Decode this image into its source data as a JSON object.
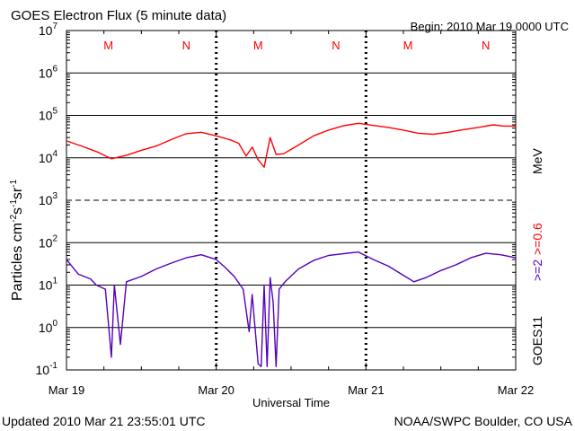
{
  "header": {
    "title": "GOES Electron Flux (5 minute data)",
    "begin": "Begin: 2010 Mar 19 0000 UTC"
  },
  "footer": {
    "updated": "Updated 2010 Mar 21 23:55:01 UTC",
    "source": "NOAA/SWPC Boulder, CO USA"
  },
  "axes": {
    "xlabel": "Universal Time",
    "ylabel": "Particles cm⁻²s⁻¹sr⁻¹",
    "ylabel_parts": {
      "main": "Particles cm",
      "e1": "-2",
      "s": "s",
      "e2": "-1",
      "sr": "sr",
      "e3": "-1"
    },
    "right_label_red": ">=0.6 MeV",
    "right_label_red_parts": {
      "energy": ">=0.6",
      "unit": "MeV"
    },
    "right_label_purple": ">=2",
    "right_label_black": "GOES11",
    "y_tick_labels": [
      {
        "base": "10",
        "exp": "7"
      },
      {
        "base": "10",
        "exp": "6"
      },
      {
        "base": "10",
        "exp": "5"
      },
      {
        "base": "10",
        "exp": "4"
      },
      {
        "base": "10",
        "exp": "3"
      },
      {
        "base": "10",
        "exp": "2"
      },
      {
        "base": "10",
        "exp": "1"
      },
      {
        "base": "10",
        "exp": "0"
      },
      {
        "base": "10",
        "exp": "-1"
      }
    ],
    "x_tick_labels": [
      "Mar 19",
      "Mar 20",
      "Mar 21",
      "Mar 22"
    ]
  },
  "chart_data": {
    "type": "line",
    "x_unit": "days since 2010 Mar 19 00:00 UTC",
    "xlim": [
      0,
      3
    ],
    "ylim": [
      0.1,
      10000000
    ],
    "yscale": "log",
    "markers": [
      {
        "label": "M",
        "x": 0.28
      },
      {
        "label": "N",
        "x": 0.8
      },
      {
        "label": "M",
        "x": 1.28
      },
      {
        "label": "N",
        "x": 1.8
      },
      {
        "label": "M",
        "x": 2.28
      },
      {
        "label": "N",
        "x": 2.8
      }
    ],
    "series": [
      {
        "name": ">=0.6 MeV",
        "color": "#ff0000",
        "points": [
          [
            0.0,
            25000
          ],
          [
            0.1,
            19000
          ],
          [
            0.2,
            14000
          ],
          [
            0.3,
            9500
          ],
          [
            0.4,
            11500
          ],
          [
            0.5,
            15000
          ],
          [
            0.6,
            19000
          ],
          [
            0.7,
            27000
          ],
          [
            0.8,
            37000
          ],
          [
            0.9,
            40000
          ],
          [
            1.0,
            33000
          ],
          [
            1.1,
            26000
          ],
          [
            1.15,
            22000
          ],
          [
            1.2,
            11000
          ],
          [
            1.24,
            18000
          ],
          [
            1.28,
            9000
          ],
          [
            1.32,
            6000
          ],
          [
            1.36,
            30000
          ],
          [
            1.4,
            12000
          ],
          [
            1.45,
            12500
          ],
          [
            1.55,
            20000
          ],
          [
            1.65,
            33000
          ],
          [
            1.75,
            45000
          ],
          [
            1.85,
            57000
          ],
          [
            1.95,
            65000
          ],
          [
            2.05,
            58000
          ],
          [
            2.15,
            52000
          ],
          [
            2.25,
            45000
          ],
          [
            2.35,
            38000
          ],
          [
            2.45,
            36000
          ],
          [
            2.55,
            40000
          ],
          [
            2.65,
            46000
          ],
          [
            2.75,
            52000
          ],
          [
            2.85,
            60000
          ],
          [
            2.92,
            56000
          ],
          [
            3.0,
            56000
          ]
        ]
      },
      {
        "name": ">=2 MeV",
        "color": "#5500bb",
        "points": [
          [
            0.0,
            40
          ],
          [
            0.08,
            18
          ],
          [
            0.16,
            14
          ],
          [
            0.2,
            10
          ],
          [
            0.26,
            8
          ],
          [
            0.3,
            0.2
          ],
          [
            0.32,
            10
          ],
          [
            0.36,
            0.4
          ],
          [
            0.4,
            12
          ],
          [
            0.5,
            16
          ],
          [
            0.6,
            24
          ],
          [
            0.7,
            33
          ],
          [
            0.8,
            44
          ],
          [
            0.9,
            52
          ],
          [
            1.0,
            40
          ],
          [
            1.06,
            26
          ],
          [
            1.12,
            16
          ],
          [
            1.18,
            8
          ],
          [
            1.22,
            0.8
          ],
          [
            1.24,
            6
          ],
          [
            1.28,
            0.14
          ],
          [
            1.3,
            0.12
          ],
          [
            1.32,
            10
          ],
          [
            1.34,
            0.12
          ],
          [
            1.36,
            15
          ],
          [
            1.38,
            4
          ],
          [
            1.4,
            0.12
          ],
          [
            1.42,
            8
          ],
          [
            1.46,
            12
          ],
          [
            1.55,
            24
          ],
          [
            1.65,
            38
          ],
          [
            1.75,
            50
          ],
          [
            1.85,
            55
          ],
          [
            1.95,
            60
          ],
          [
            2.05,
            40
          ],
          [
            2.15,
            28
          ],
          [
            2.25,
            17
          ],
          [
            2.32,
            12
          ],
          [
            2.4,
            15
          ],
          [
            2.5,
            22
          ],
          [
            2.6,
            30
          ],
          [
            2.7,
            44
          ],
          [
            2.8,
            56
          ],
          [
            2.9,
            52
          ],
          [
            3.0,
            44
          ]
        ]
      }
    ],
    "grid": {
      "horizontal": true,
      "dashed_at": [
        1000
      ]
    }
  }
}
